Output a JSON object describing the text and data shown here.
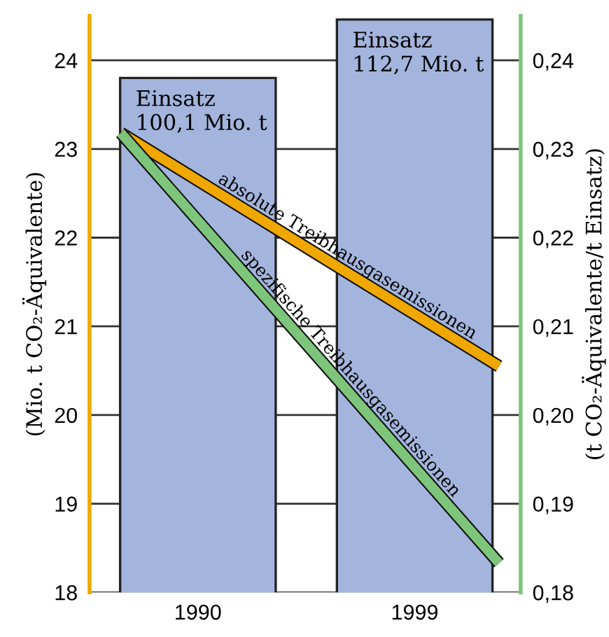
{
  "chart_data": {
    "type": "bar",
    "ylabel": "(Mio. t CO₂-Äquivalente)",
    "y2label": "(t CO₂-Äquivalente/t Einsatz)",
    "xlim": [
      1985.5,
      2003.4
    ],
    "xticks": [
      1990,
      1999
    ],
    "ylim": [
      18,
      24.5
    ],
    "yticks": [
      18,
      19,
      20,
      21,
      22,
      23,
      24
    ],
    "y2lim": [
      0.18,
      0.245
    ],
    "y2ticks": [
      {
        "value": 0.18,
        "label": "0,18"
      },
      {
        "value": 0.19,
        "label": "0,19"
      },
      {
        "value": 0.2,
        "label": "0,20"
      },
      {
        "value": 0.21,
        "label": "0,21"
      },
      {
        "value": 0.22,
        "label": "0,22"
      },
      {
        "value": 0.23,
        "label": "0,23"
      },
      {
        "value": 0.24,
        "label": "0,24"
      }
    ],
    "grid": "y",
    "series": [
      {
        "color": "#a3b5dc",
        "x": [
          1990,
          1999
        ],
        "values": [
          23.8,
          24.46
        ]
      },
      {
        "type": "line",
        "name": "absolute Treibhausgasemissionen",
        "color": "#f0a800",
        "x": [
          1986.8,
          2002.5
        ],
        "values": [
          23.18,
          20.55
        ]
      },
      {
        "type": "line",
        "name": "spezifische Treibhausgasemissionen",
        "color": "#7dc57a",
        "axis": "y2",
        "x": [
          1986.8,
          2002.5
        ],
        "values": [
          0.2318,
          0.1833
        ]
      }
    ],
    "annotations": [
      {
        "text": "Einsatz\n100,1 Mio. t",
        "x": 1990,
        "y": 23.8
      },
      {
        "text": "Einsatz\n112,7 Mio. t",
        "x": 1999,
        "y": 24.46
      }
    ]
  }
}
